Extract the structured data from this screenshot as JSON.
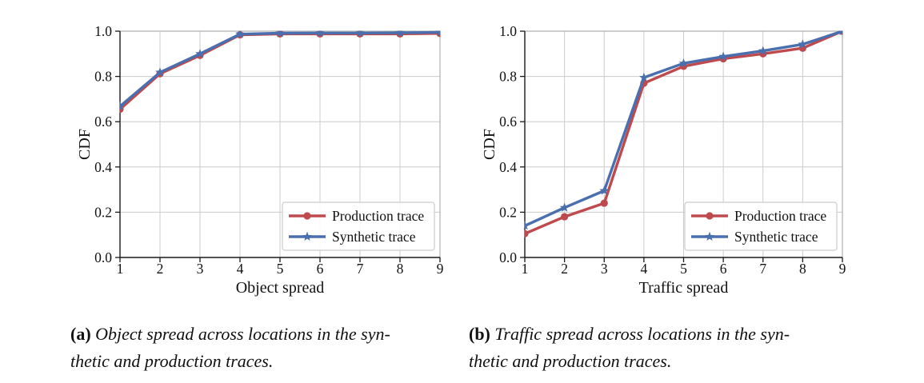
{
  "figure": {
    "background": "#ffffff",
    "text_color": "#111111",
    "grid_color": "#cccccc",
    "spine_dark": "#1a1a1a",
    "spine_light": "#b0b0b0"
  },
  "chart_data": [
    {
      "id": "object-spread-cdf",
      "type": "line",
      "title": "",
      "xlabel": "Object spread",
      "ylabel": "CDF",
      "x": [
        1,
        2,
        3,
        4,
        5,
        6,
        7,
        8,
        9
      ],
      "xlim": [
        1,
        9
      ],
      "ylim": [
        0.0,
        1.0
      ],
      "xtick_labels": [
        "1",
        "2",
        "3",
        "4",
        "5",
        "6",
        "7",
        "8",
        "9"
      ],
      "yticks": [
        0.0,
        0.2,
        0.4,
        0.6,
        0.8,
        1.0
      ],
      "ytick_labels": [
        "0.0",
        "0.2",
        "0.4",
        "0.6",
        "0.8",
        "1.0"
      ],
      "grid": true,
      "legend_position": "lower right",
      "series": [
        {
          "name": "Production trace",
          "color": "#bf4a4e",
          "marker": "circle",
          "values": [
            0.655,
            0.812,
            0.893,
            0.984,
            0.988,
            0.988,
            0.988,
            0.988,
            0.99
          ]
        },
        {
          "name": "Synthetic trace",
          "color": "#4a6fae",
          "marker": "star",
          "values": [
            0.668,
            0.818,
            0.9,
            0.987,
            0.991,
            0.992,
            0.992,
            0.993,
            0.995
          ]
        }
      ]
    },
    {
      "id": "traffic-spread-cdf",
      "type": "line",
      "title": "",
      "xlabel": "Traffic spread",
      "ylabel": "CDF",
      "x": [
        1,
        2,
        3,
        4,
        5,
        6,
        7,
        8,
        9
      ],
      "xlim": [
        1,
        9
      ],
      "ylim": [
        0.0,
        1.0
      ],
      "xtick_labels": [
        "1",
        "2",
        "3",
        "4",
        "5",
        "6",
        "7",
        "8",
        "9"
      ],
      "yticks": [
        0.0,
        0.2,
        0.4,
        0.6,
        0.8,
        1.0
      ],
      "ytick_labels": [
        "0.0",
        "0.2",
        "0.4",
        "0.6",
        "0.8",
        "1.0"
      ],
      "grid": true,
      "legend_position": "lower right",
      "series": [
        {
          "name": "Production trace",
          "color": "#bf4a4e",
          "marker": "circle",
          "values": [
            0.105,
            0.18,
            0.24,
            0.77,
            0.845,
            0.878,
            0.9,
            0.925,
            1.0
          ]
        },
        {
          "name": "Synthetic trace",
          "color": "#4a6fae",
          "marker": "star",
          "values": [
            0.14,
            0.22,
            0.295,
            0.795,
            0.858,
            0.888,
            0.913,
            0.942,
            1.0
          ]
        }
      ]
    }
  ],
  "captions": [
    {
      "label": "(a)",
      "line1": "Object spread across locations in the syn-",
      "line2": "thetic and production traces."
    },
    {
      "label": "(b)",
      "line1": "Traffic spread across locations in the syn-",
      "line2": "thetic and production traces."
    }
  ]
}
